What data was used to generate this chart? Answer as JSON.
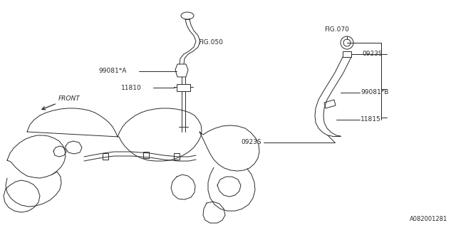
{
  "bg_color": "#ffffff",
  "line_color": "#2a2a2a",
  "text_color": "#2a2a2a",
  "figure_number": "A082001281",
  "labels": {
    "fig050": "FIG.050",
    "fig070": "FIG.070",
    "front": "FRONT",
    "part_99081A": "99081*A",
    "part_11810": "11810",
    "part_0923S_top": "0923S",
    "part_0923S_mid": "0923S",
    "part_99081B": "99081*B",
    "part_11815": "11815"
  }
}
